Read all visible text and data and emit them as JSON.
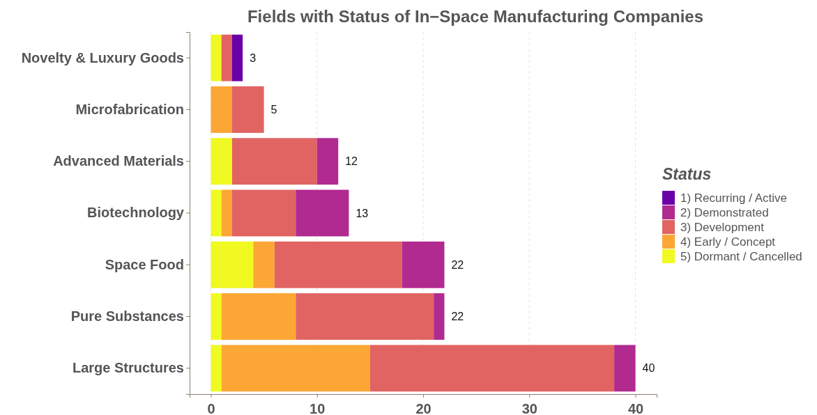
{
  "chart_data": {
    "type": "bar",
    "orientation": "horizontal",
    "stacked": true,
    "title": "Fields with Status of In−Space Manufacturing Companies",
    "categories": [
      "Novelty & Luxury Goods",
      "Microfabrication",
      "Advanced Materials",
      "Biotechnology",
      "Space Food",
      "Pure Substances",
      "Large Structures"
    ],
    "series": [
      {
        "name": "5)  Dormant / Cancelled",
        "color": "#f0f921",
        "values": [
          1,
          0,
          2,
          1,
          4,
          1,
          1
        ]
      },
      {
        "name": "4)  Early / Concept",
        "color": "#fca636",
        "values": [
          0,
          2,
          0,
          1,
          2,
          7,
          14
        ]
      },
      {
        "name": "3)  Development",
        "color": "#e16462",
        "values": [
          1,
          3,
          8,
          6,
          12,
          13,
          23
        ]
      },
      {
        "name": "2)  Demonstrated",
        "color": "#b12a90",
        "values": [
          0,
          0,
          2,
          5,
          4,
          1,
          2
        ]
      },
      {
        "name": "1)  Recurring / Active",
        "color": "#6a00a8",
        "values": [
          1,
          0,
          0,
          0,
          0,
          0,
          0
        ]
      }
    ],
    "totals": [
      "3",
      "5",
      "12",
      "13",
      "22",
      "22",
      "40"
    ],
    "xlim": [
      -2,
      42
    ],
    "xticks": [
      0,
      10,
      20,
      30,
      40
    ],
    "grid": "x",
    "legend": "right",
    "legend_title": "Status"
  }
}
